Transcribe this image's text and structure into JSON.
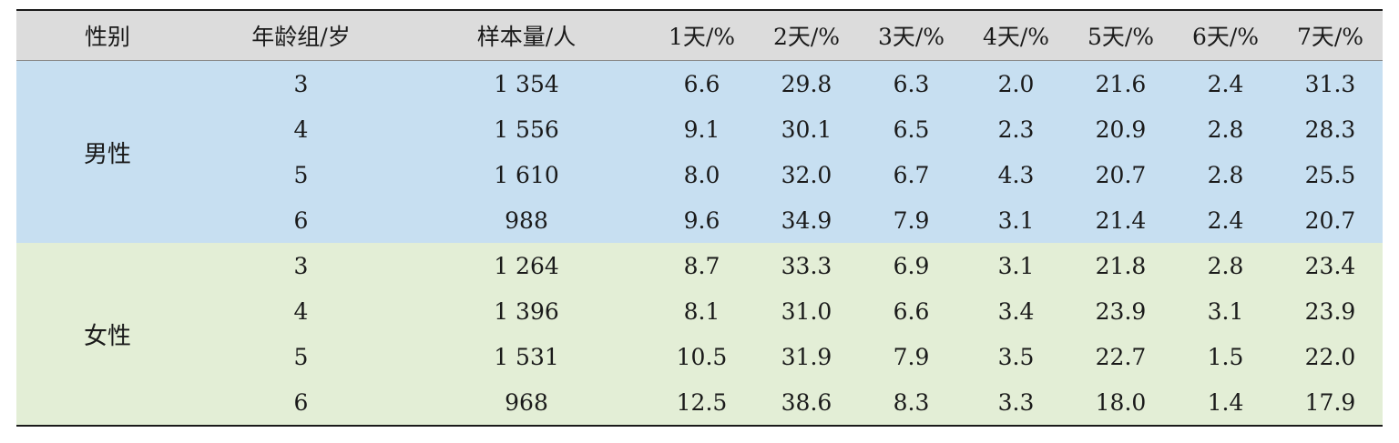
{
  "headers": [
    "性别",
    "年龄组/岁",
    "样本量/人",
    "1天/%",
    "2天/%",
    "3天/%",
    "4天/%",
    "5天/%",
    "6天/%",
    "7天/%"
  ],
  "groups": [
    {
      "sex": "男性",
      "rows": [
        {
          "age": "3",
          "n": "1 354",
          "d": [
            "6.6",
            "29.8",
            "6.3",
            "2.0",
            "21.6",
            "2.4",
            "31.3"
          ]
        },
        {
          "age": "4",
          "n": "1 556",
          "d": [
            "9.1",
            "30.1",
            "6.5",
            "2.3",
            "20.9",
            "2.8",
            "28.3"
          ]
        },
        {
          "age": "5",
          "n": "1 610",
          "d": [
            "8.0",
            "32.0",
            "6.7",
            "4.3",
            "20.7",
            "2.8",
            "25.5"
          ]
        },
        {
          "age": "6",
          "n": "988",
          "d": [
            "9.6",
            "34.9",
            "7.9",
            "3.1",
            "21.4",
            "2.4",
            "20.7"
          ]
        }
      ]
    },
    {
      "sex": "女性",
      "rows": [
        {
          "age": "3",
          "n": "1 264",
          "d": [
            "8.7",
            "33.3",
            "6.9",
            "3.1",
            "21.8",
            "2.8",
            "23.4"
          ]
        },
        {
          "age": "4",
          "n": "1 396",
          "d": [
            "8.1",
            "31.0",
            "6.6",
            "3.4",
            "23.9",
            "3.1",
            "23.9"
          ]
        },
        {
          "age": "5",
          "n": "1 531",
          "d": [
            "10.5",
            "31.9",
            "7.9",
            "3.5",
            "22.7",
            "1.5",
            "22.0"
          ]
        },
        {
          "age": "6",
          "n": "968",
          "d": [
            "12.5",
            "38.6",
            "8.3",
            "3.3",
            "18.0",
            "1.4",
            "17.9"
          ]
        }
      ]
    }
  ],
  "colors": {
    "male_bg": "#c7dff1",
    "female_bg": "#e3eed6",
    "header_bg": "#dcdcdc"
  }
}
